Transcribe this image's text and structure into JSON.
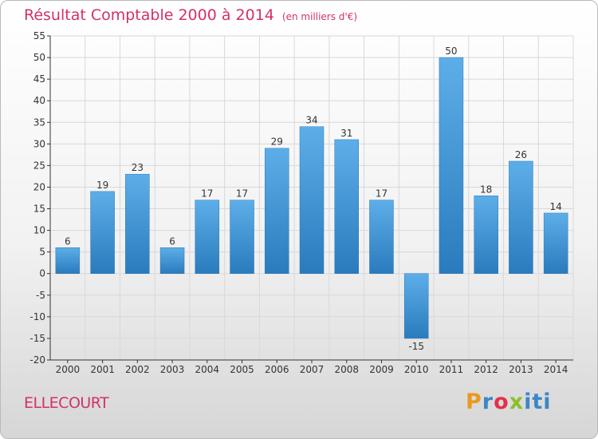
{
  "header": {
    "title": "Résultat Comptable 2000 à 2014",
    "subtitle": "(en milliers d'€)"
  },
  "footer": {
    "commune": "ELLECOURT",
    "logo_text": "Proxiti"
  },
  "colors": {
    "title": "#d4306a",
    "bar_light": "#5daee8",
    "bar_dark": "#2a7bbd",
    "grid": "#d8d8d8",
    "axis": "#333333"
  },
  "chart_data": {
    "type": "bar",
    "title": "Résultat Comptable 2000 à 2014",
    "subtitle": "(en milliers d'€)",
    "xlabel": "",
    "ylabel": "",
    "categories": [
      "2000",
      "2001",
      "2002",
      "2003",
      "2004",
      "2005",
      "2006",
      "2007",
      "2008",
      "2009",
      "2010",
      "2011",
      "2012",
      "2013",
      "2014"
    ],
    "values": [
      6,
      19,
      23,
      6,
      17,
      17,
      29,
      34,
      31,
      17,
      -15,
      50,
      18,
      26,
      14
    ],
    "ylim": [
      -20,
      55
    ],
    "yticks": [
      -20,
      -15,
      -10,
      -5,
      0,
      5,
      10,
      15,
      20,
      25,
      30,
      35,
      40,
      45,
      50,
      55
    ],
    "grid": true,
    "legend": "none"
  }
}
